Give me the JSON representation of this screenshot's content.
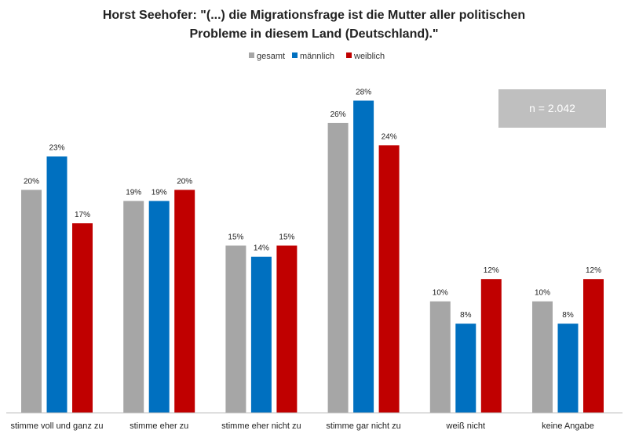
{
  "chart_data": {
    "type": "bar",
    "title_lines": [
      "Horst Seehofer: \"(...) die Migrationsfrage ist die Mutter aller politischen",
      "Probleme in diesem Land (Deutschland).\""
    ],
    "categories": [
      "stimme voll und ganz zu",
      "stimme eher zu",
      "stimme eher nicht zu",
      "stimme gar nicht zu",
      "weiß nicht",
      "keine Angabe"
    ],
    "series": [
      {
        "name": "gesamt",
        "color": "#a6a6a6",
        "values": [
          20,
          19,
          15,
          26,
          10,
          10
        ]
      },
      {
        "name": "männlich",
        "color": "#0070c0",
        "values": [
          23,
          19,
          14,
          28,
          8,
          8
        ]
      },
      {
        "name": "weiblich",
        "color": "#c00000",
        "values": [
          17,
          20,
          15,
          24,
          12,
          12
        ]
      }
    ],
    "value_suffix": "%",
    "ylim": [
      0,
      30
    ],
    "legend_position": "top",
    "grid": false,
    "annotation": "n = 2.042"
  }
}
